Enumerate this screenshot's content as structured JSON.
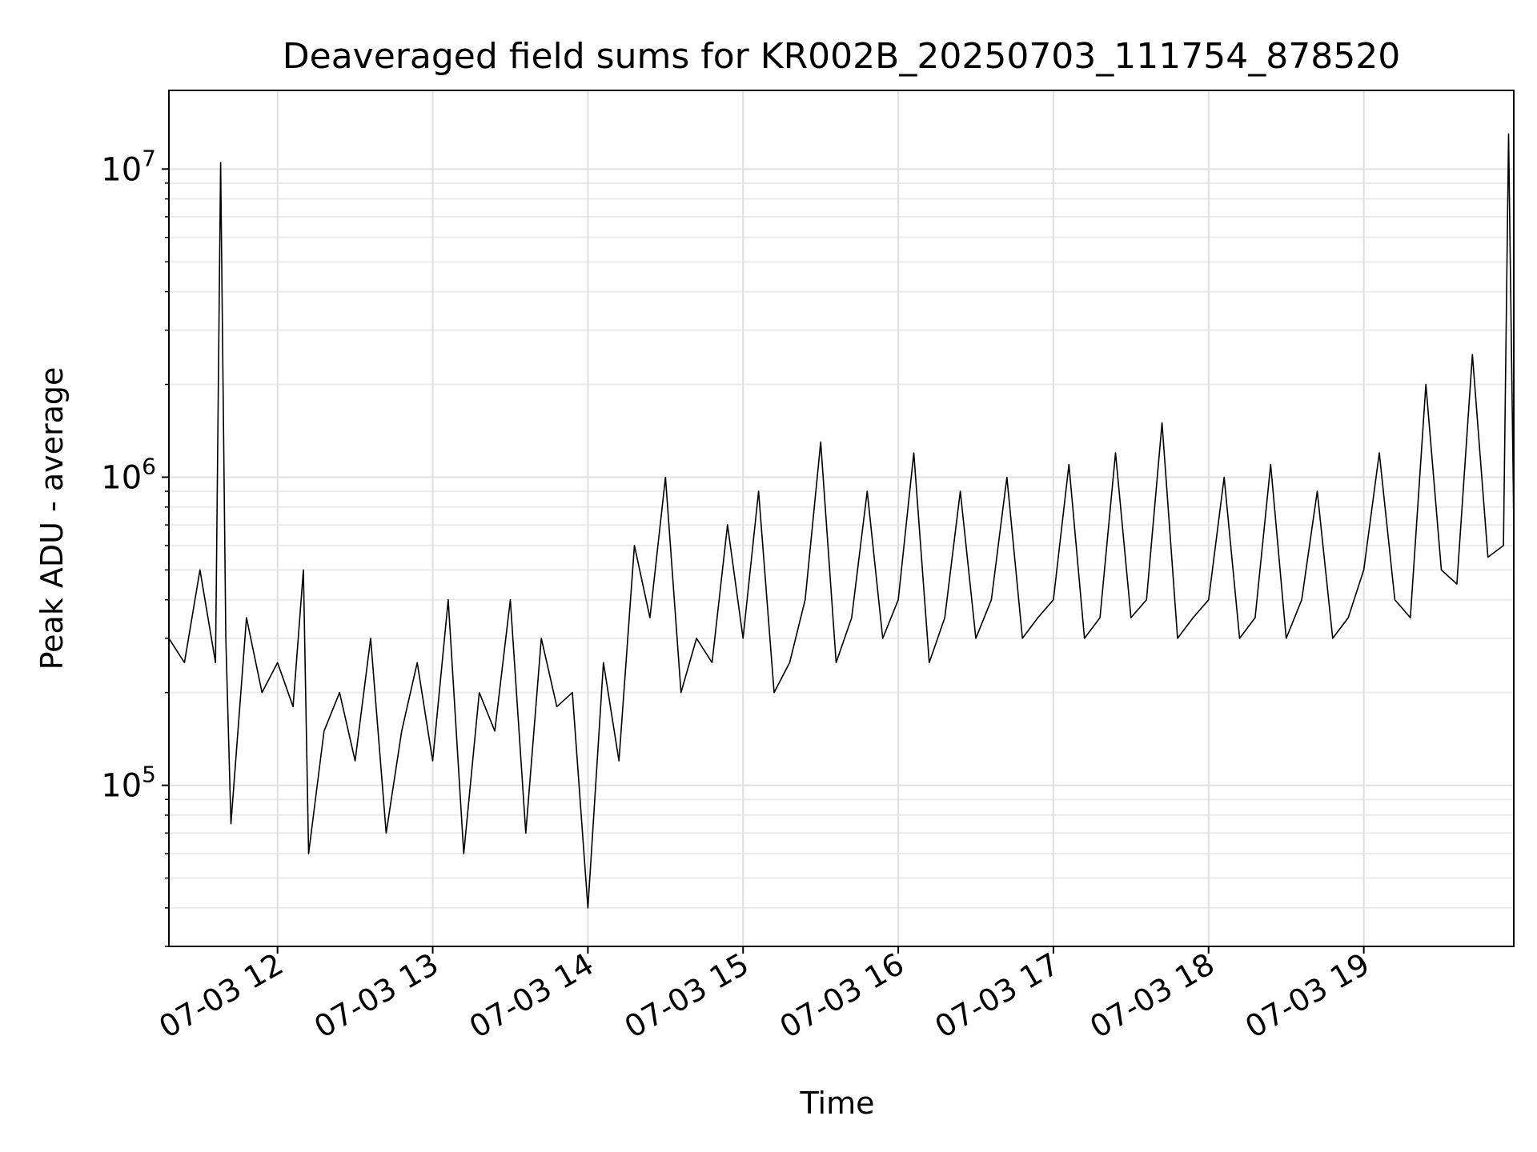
{
  "chart_data": {
    "type": "line",
    "title": "Deaveraged field sums for KR002B_20250703_111754_878520",
    "xlabel": "Time",
    "ylabel": "Peak ADU - average",
    "y_scale": "log",
    "grid": "major and minor",
    "ylim": [
      30000,
      18000000
    ],
    "xlim": [
      "2025-07-03 11:18",
      "2025-07-03 19:58"
    ],
    "x_ticks": [
      {
        "label": "07-03 12",
        "time": "2025-07-03 12:00"
      },
      {
        "label": "07-03 13",
        "time": "2025-07-03 13:00"
      },
      {
        "label": "07-03 14",
        "time": "2025-07-03 14:00"
      },
      {
        "label": "07-03 15",
        "time": "2025-07-03 15:00"
      },
      {
        "label": "07-03 16",
        "time": "2025-07-03 16:00"
      },
      {
        "label": "07-03 17",
        "time": "2025-07-03 17:00"
      },
      {
        "label": "07-03 18",
        "time": "2025-07-03 18:00"
      },
      {
        "label": "07-03 19",
        "time": "2025-07-03 19:00"
      }
    ],
    "y_ticks": [
      {
        "value": 100000,
        "base": "10",
        "exp": "5"
      },
      {
        "value": 1000000,
        "base": "10",
        "exp": "6"
      },
      {
        "value": 10000000,
        "base": "10",
        "exp": "7"
      }
    ],
    "series": [
      {
        "color": "#000000",
        "x": [
          "2025-07-03 11:18",
          "2025-07-03 11:24",
          "2025-07-03 11:30",
          "2025-07-03 11:36",
          "2025-07-03 11:38",
          "2025-07-03 11:40",
          "2025-07-03 11:42",
          "2025-07-03 11:48",
          "2025-07-03 11:54",
          "2025-07-03 12:00",
          "2025-07-03 12:06",
          "2025-07-03 12:10",
          "2025-07-03 12:12",
          "2025-07-03 12:18",
          "2025-07-03 12:24",
          "2025-07-03 12:30",
          "2025-07-03 12:36",
          "2025-07-03 12:42",
          "2025-07-03 12:48",
          "2025-07-03 12:54",
          "2025-07-03 13:00",
          "2025-07-03 13:06",
          "2025-07-03 13:12",
          "2025-07-03 13:18",
          "2025-07-03 13:24",
          "2025-07-03 13:30",
          "2025-07-03 13:36",
          "2025-07-03 13:42",
          "2025-07-03 13:48",
          "2025-07-03 13:54",
          "2025-07-03 14:00",
          "2025-07-03 14:06",
          "2025-07-03 14:12",
          "2025-07-03 14:18",
          "2025-07-03 14:24",
          "2025-07-03 14:30",
          "2025-07-03 14:36",
          "2025-07-03 14:42",
          "2025-07-03 14:48",
          "2025-07-03 14:54",
          "2025-07-03 15:00",
          "2025-07-03 15:06",
          "2025-07-03 15:12",
          "2025-07-03 15:18",
          "2025-07-03 15:24",
          "2025-07-03 15:30",
          "2025-07-03 15:36",
          "2025-07-03 15:42",
          "2025-07-03 15:48",
          "2025-07-03 15:54",
          "2025-07-03 16:00",
          "2025-07-03 16:06",
          "2025-07-03 16:12",
          "2025-07-03 16:18",
          "2025-07-03 16:24",
          "2025-07-03 16:30",
          "2025-07-03 16:36",
          "2025-07-03 16:42",
          "2025-07-03 16:48",
          "2025-07-03 16:54",
          "2025-07-03 17:00",
          "2025-07-03 17:06",
          "2025-07-03 17:12",
          "2025-07-03 17:18",
          "2025-07-03 17:24",
          "2025-07-03 17:30",
          "2025-07-03 17:36",
          "2025-07-03 17:42",
          "2025-07-03 17:48",
          "2025-07-03 17:54",
          "2025-07-03 18:00",
          "2025-07-03 18:06",
          "2025-07-03 18:12",
          "2025-07-03 18:18",
          "2025-07-03 18:24",
          "2025-07-03 18:30",
          "2025-07-03 18:36",
          "2025-07-03 18:42",
          "2025-07-03 18:48",
          "2025-07-03 18:54",
          "2025-07-03 19:00",
          "2025-07-03 19:06",
          "2025-07-03 19:12",
          "2025-07-03 19:18",
          "2025-07-03 19:24",
          "2025-07-03 19:30",
          "2025-07-03 19:36",
          "2025-07-03 19:42",
          "2025-07-03 19:48",
          "2025-07-03 19:54",
          "2025-07-03 19:56",
          "2025-07-03 19:58"
        ],
        "y": [
          300000,
          250000,
          500000,
          250000,
          10500000,
          300000,
          75000,
          350000,
          200000,
          250000,
          180000,
          500000,
          60000,
          150000,
          200000,
          120000,
          300000,
          70000,
          150000,
          250000,
          120000,
          400000,
          60000,
          200000,
          150000,
          400000,
          70000,
          300000,
          180000,
          200000,
          40000,
          250000,
          120000,
          600000,
          350000,
          1000000,
          200000,
          300000,
          250000,
          700000,
          300000,
          900000,
          200000,
          250000,
          400000,
          1300000,
          250000,
          350000,
          900000,
          300000,
          400000,
          1200000,
          250000,
          350000,
          900000,
          300000,
          400000,
          1000000,
          300000,
          350000,
          400000,
          1100000,
          300000,
          350000,
          1200000,
          350000,
          400000,
          1500000,
          300000,
          350000,
          400000,
          1000000,
          300000,
          350000,
          1100000,
          300000,
          400000,
          900000,
          300000,
          350000,
          500000,
          1200000,
          400000,
          350000,
          2000000,
          500000,
          450000,
          2500000,
          550000,
          600000,
          13000000,
          700000
        ]
      }
    ]
  }
}
